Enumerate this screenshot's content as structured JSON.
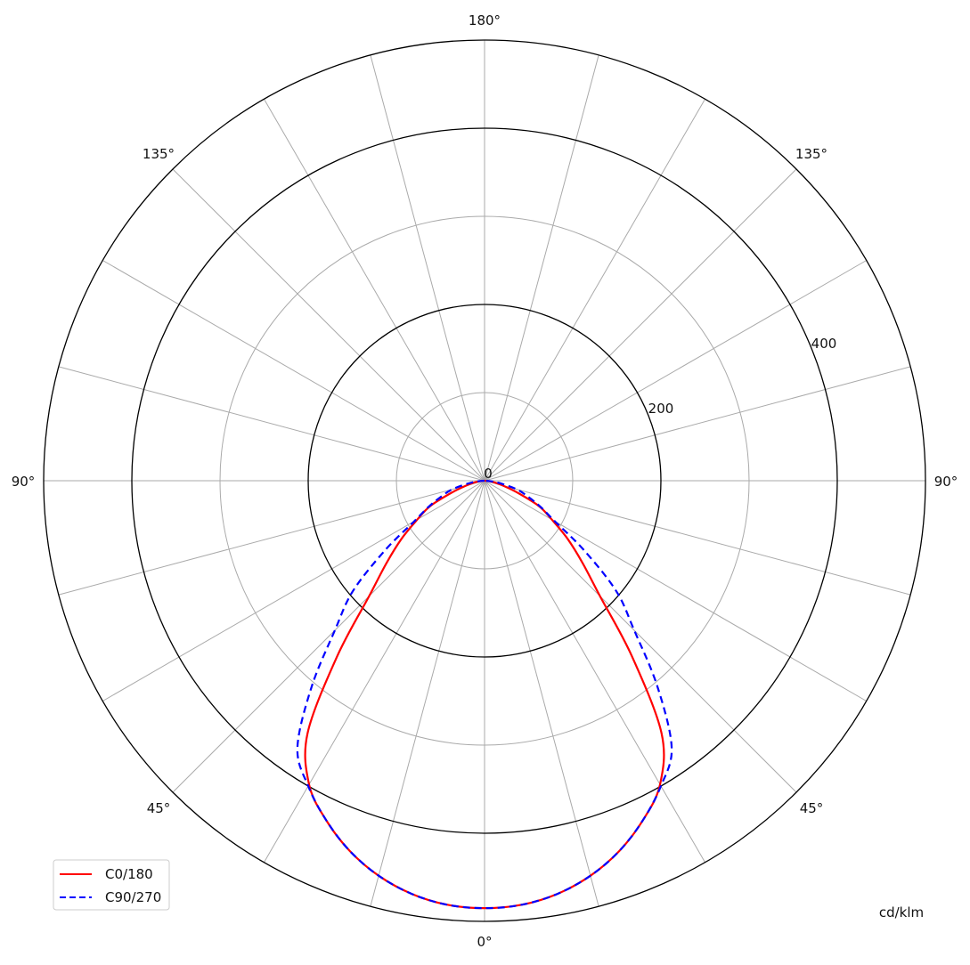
{
  "chart_data": {
    "type": "line",
    "subtype": "polar",
    "unit_label": "cd/klm",
    "radial_ticks": [
      "0",
      "200",
      "400"
    ],
    "radial_range": [
      0,
      500
    ],
    "radial_gridlines": [
      100,
      200,
      300,
      400,
      500
    ],
    "angle_step_deg": 15,
    "angle_labels": {
      "top": "180°",
      "upper_left": "135°",
      "upper_right": "135°",
      "left": "90°",
      "right": "90°",
      "lower_left": "45°",
      "lower_right": "45°",
      "bottom": "0°"
    },
    "grid": true,
    "legend_position": "bottom-left",
    "gamma_deg": [
      0,
      5,
      10,
      15,
      20,
      25,
      30,
      35,
      40,
      45,
      50,
      55,
      60,
      65,
      70,
      75,
      80,
      85,
      90
    ],
    "series": [
      {
        "name": "C0/180",
        "color": "#ff0000",
        "style": "solid",
        "values": [
          485,
          483,
          476,
          464,
          447,
          425,
          398,
          350,
          260,
          185,
          145,
          115,
          88,
          68,
          40,
          22,
          12,
          5,
          0
        ]
      },
      {
        "name": "C90/270",
        "color": "#0000ff",
        "style": "dashed",
        "values": [
          485,
          483,
          476,
          464,
          447,
          425,
          400,
          370,
          305,
          240,
          195,
          138,
          92,
          70,
          52,
          38,
          20,
          8,
          0
        ]
      }
    ]
  }
}
